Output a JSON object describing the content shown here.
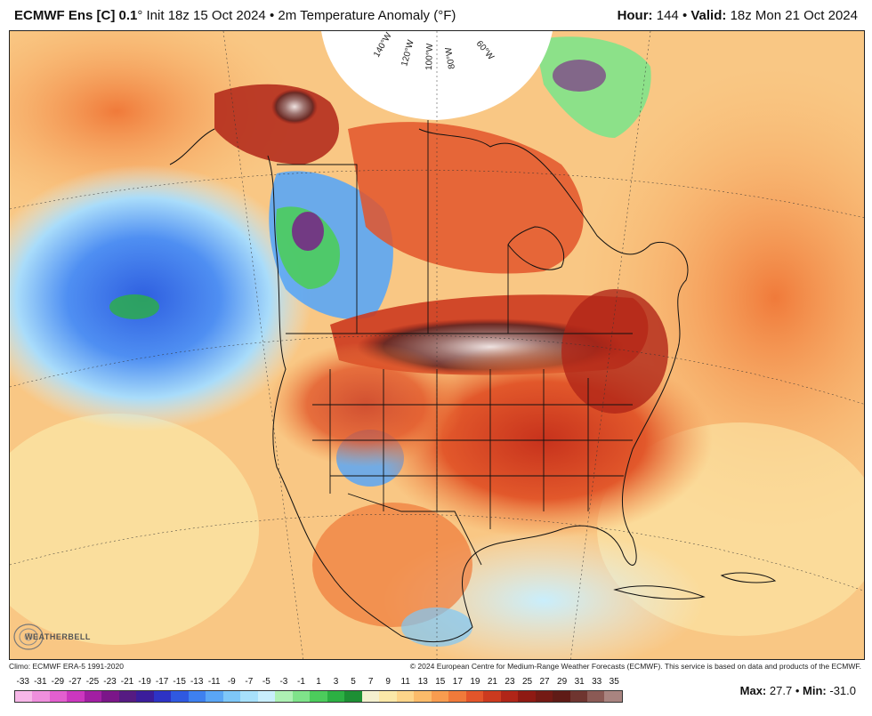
{
  "header": {
    "model": "ECMWF Ens [C] 0.1",
    "degree_mark": "°",
    "init": "Init 18z 15 Oct 2024",
    "bullet": "•",
    "variable": "2m Temperature Anomaly (°F)",
    "hour_label": "Hour:",
    "hour_value": "144",
    "valid_label": "Valid:",
    "valid_value": "18z Mon 21 Oct 2024"
  },
  "map": {
    "longitude_labels": [
      "140°W",
      "120°W",
      "100°W",
      "80°W",
      "60°W"
    ]
  },
  "logo": {
    "text": "WEATHERBELL"
  },
  "credits": {
    "left": "Climo: ECMWF ERA-5 1991-2020",
    "right": "© 2024 European Centre for Medium-Range Weather Forecasts (ECMWF). This service is based on data and products of the ECMWF."
  },
  "colorbar": {
    "ticks": [
      "-33",
      "-31",
      "-29",
      "-27",
      "-25",
      "-23",
      "-21",
      "-19",
      "-17",
      "-15",
      "-13",
      "-11",
      "-9",
      "-7",
      "-5",
      "-3",
      "-1",
      "1",
      "3",
      "5",
      "7",
      "9",
      "11",
      "13",
      "15",
      "17",
      "19",
      "21",
      "23",
      "25",
      "27",
      "29",
      "31",
      "33",
      "35"
    ],
    "colors": [
      "#f7b7e8",
      "#ef8fdd",
      "#e35fcf",
      "#cc37bf",
      "#a21fa3",
      "#7b1689",
      "#561b82",
      "#3b1d9b",
      "#2d33c5",
      "#2f59e1",
      "#3e80ef",
      "#5aa6f5",
      "#7ec7f8",
      "#a7e0fb",
      "#c9eefc",
      "#aef0b4",
      "#7fe38a",
      "#4ccc5c",
      "#2cb043",
      "#1d8f34",
      "#f4f0cf",
      "#fbe8a8",
      "#fdd58a",
      "#fbbb6a",
      "#f89c4f",
      "#f07a3a",
      "#e3552a",
      "#cc3a1f",
      "#b02518",
      "#8f1a13",
      "#741a14",
      "#5f1b16",
      "#6f3530",
      "#8b5a55",
      "#a98480"
    ]
  },
  "stats": {
    "max_label": "Max:",
    "max_value": "27.7",
    "min_label": "Min:",
    "min_value": "-31.0",
    "separator": "•"
  }
}
